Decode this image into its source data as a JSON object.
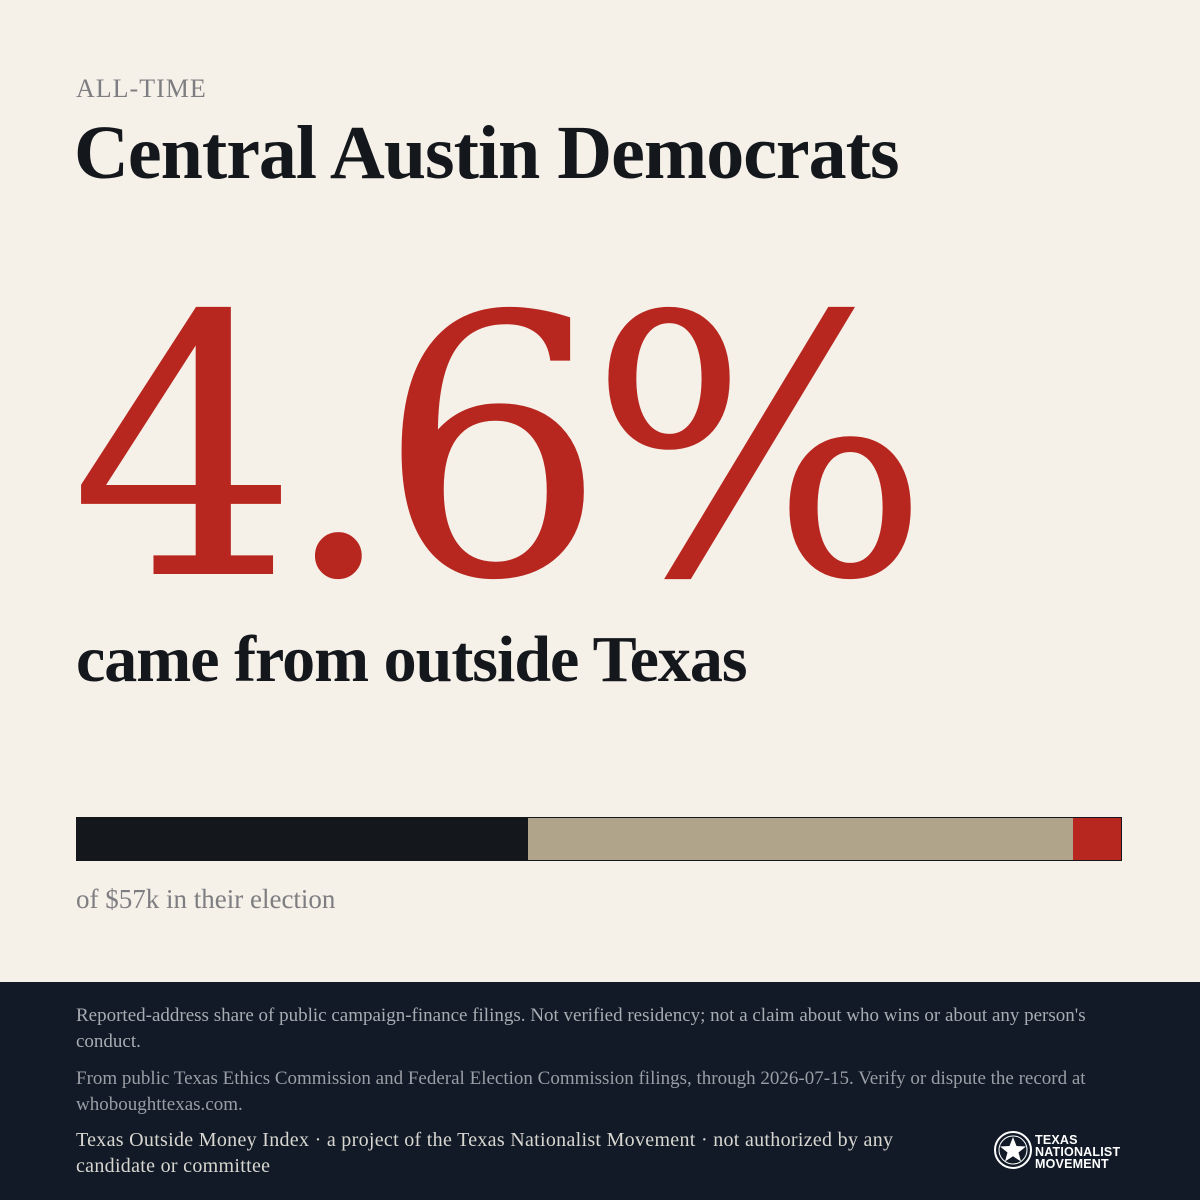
{
  "header": {
    "kicker": "ALL-TIME",
    "title": "Central Austin Democrats"
  },
  "stat": {
    "value": "4.6%",
    "subtitle": "came from outside Texas"
  },
  "bar": {
    "segments": [
      {
        "name": "segment-1",
        "fraction": 0.432,
        "color": "#14171c"
      },
      {
        "name": "segment-2",
        "fraction": 0.522,
        "color": "#b0a48a"
      },
      {
        "name": "outside-texas",
        "fraction": 0.046,
        "color": "#b8271f"
      }
    ]
  },
  "caption": "of $57k in their election",
  "footer": {
    "disclaimer": "Reported-address share of public campaign-finance filings. Not verified residency; not a claim about who wins or about any person's conduct.",
    "source": "From public Texas Ethics Commission and Federal Election Commission filings, through 2026-07-15. Verify or dispute the record at whoboughttexas.com.",
    "project": "Texas Outside Money Index · a project of the Texas Nationalist Movement · not authorized by any candidate or committee",
    "logo": {
      "icon": "star-seal-icon",
      "line1": "TEXAS",
      "line2": "NATIONALIST",
      "line3": "MOVEMENT"
    }
  }
}
